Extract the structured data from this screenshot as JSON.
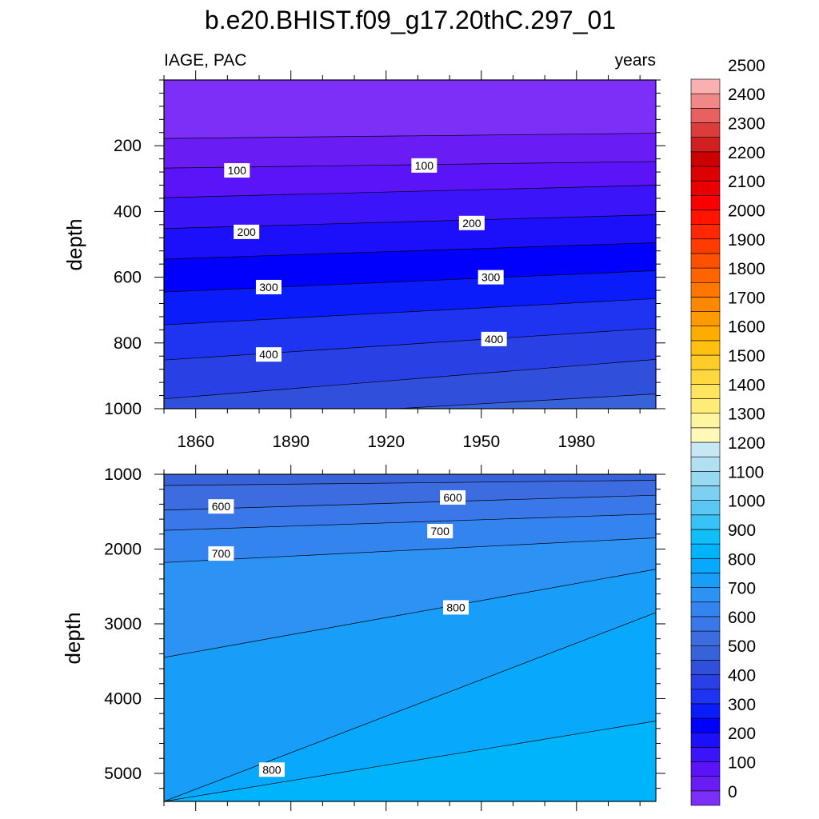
{
  "title": "b.e20.BHIST.f09_g17.20thC.297_01",
  "chart_data": [
    {
      "type": "heatmap",
      "panel": "upper",
      "left_string": "IAGE, PAC",
      "right_string": "years",
      "xlabel": "",
      "ylabel": "depth",
      "xlim": [
        1850,
        2005
      ],
      "ylim": [
        1000,
        0
      ],
      "x_ticks": [
        "1860",
        "1890",
        "1920",
        "1950",
        "1980"
      ],
      "x_tick_values": [
        1860,
        1890,
        1920,
        1950,
        1980
      ],
      "y_ticks": [
        "200",
        "400",
        "600",
        "800",
        "1000"
      ],
      "y_tick_values": [
        200,
        400,
        600,
        800,
        1000
      ],
      "contour_interval": 50,
      "contours": [
        {
          "level": 50,
          "depth_at_start": 178,
          "depth_at_end": 162
        },
        {
          "level": 100,
          "depth_at_start": 268,
          "depth_at_end": 248
        },
        {
          "level": 150,
          "depth_at_start": 358,
          "depth_at_end": 320
        },
        {
          "level": 200,
          "depth_at_start": 452,
          "depth_at_end": 410
        },
        {
          "level": 250,
          "depth_at_start": 545,
          "depth_at_end": 495
        },
        {
          "level": 300,
          "depth_at_start": 645,
          "depth_at_end": 580
        },
        {
          "level": 350,
          "depth_at_start": 745,
          "depth_at_end": 665
        },
        {
          "level": 400,
          "depth_at_start": 852,
          "depth_at_end": 755
        },
        {
          "level": 450,
          "depth_at_start": 970,
          "depth_at_end": 850
        },
        {
          "level": 500,
          "depth_at_start": 1040,
          "depth_at_end": 955
        }
      ],
      "contour_labels": [
        {
          "text": "100",
          "x": 1873,
          "depth": 275
        },
        {
          "text": "100",
          "x": 1932,
          "depth": 260
        },
        {
          "text": "200",
          "x": 1876,
          "depth": 462
        },
        {
          "text": "200",
          "x": 1947,
          "depth": 435
        },
        {
          "text": "300",
          "x": 1883,
          "depth": 630
        },
        {
          "text": "300",
          "x": 1953,
          "depth": 600
        },
        {
          "text": "400",
          "x": 1883,
          "depth": 835
        },
        {
          "text": "400",
          "x": 1954,
          "depth": 788
        }
      ]
    },
    {
      "type": "heatmap",
      "panel": "lower",
      "xlabel": "",
      "ylabel": "depth",
      "xlim": [
        1850,
        2005
      ],
      "ylim": [
        5375,
        1000
      ],
      "x_tick_values": [
        1860,
        1890,
        1920,
        1950,
        1980
      ],
      "y_ticks": [
        "1000",
        "2000",
        "3000",
        "4000",
        "5000"
      ],
      "y_tick_values": [
        1000,
        2000,
        3000,
        4000,
        5000
      ],
      "contour_interval": 50,
      "contours": [
        {
          "level": 550,
          "depth_at_start": 1150,
          "depth_at_end": 1080
        },
        {
          "level": 600,
          "depth_at_start": 1480,
          "depth_at_end": 1280
        },
        {
          "level": 650,
          "depth_at_start": 1750,
          "depth_at_end": 1530
        },
        {
          "level": 700,
          "depth_at_start": 2180,
          "depth_at_end": 1850
        },
        {
          "level": 750,
          "depth_at_start": 3450,
          "depth_at_end": 2270
        },
        {
          "level": 800,
          "depth_at_start": 5375,
          "depth_at_end": 2850
        },
        {
          "level": 850,
          "depth_at_start": 5375,
          "depth_at_end": 4300
        }
      ],
      "contour_labels": [
        {
          "text": "600",
          "x": 1868,
          "depth": 1430
        },
        {
          "text": "600",
          "x": 1941,
          "depth": 1310
        },
        {
          "text": "700",
          "x": 1868,
          "depth": 2060
        },
        {
          "text": "700",
          "x": 1937,
          "depth": 1760
        },
        {
          "text": "800",
          "x": 1942,
          "depth": 2780
        },
        {
          "text": "800",
          "x": 1884,
          "depth": 4950
        }
      ]
    }
  ],
  "colorbar": {
    "labels": [
      "0",
      "100",
      "200",
      "300",
      "400",
      "500",
      "600",
      "700",
      "800",
      "900",
      "1000",
      "1100",
      "1200",
      "1300",
      "1400",
      "1500",
      "1600",
      "1700",
      "1800",
      "1900",
      "2000",
      "2100",
      "2200",
      "2300",
      "2400",
      "2500"
    ],
    "boxes_bottom_to_top": [
      "#7b2ff7",
      "#6a1cf4",
      "#5a14f7",
      "#3c14fa",
      "#1c10fb",
      "#0000fc",
      "#0a1cfa",
      "#1e34f0",
      "#2840e4",
      "#3050dc",
      "#3862d8",
      "#3c6ce0",
      "#3a78ea",
      "#3484f0",
      "#2c92f4",
      "#189ef8",
      "#08a8fc",
      "#00b4fc",
      "#10bef8",
      "#38c2f6",
      "#5ac8f2",
      "#7cd0f2",
      "#98d8f0",
      "#b0e0f2",
      "#c6e8f4",
      "#fff8b8",
      "#fff4a0",
      "#ffec78",
      "#ffe460",
      "#ffd840",
      "#ffcc28",
      "#ffc010",
      "#ffac00",
      "#ff9a00",
      "#ff8800",
      "#ff7600",
      "#ff6400",
      "#ff5000",
      "#ff3c00",
      "#ff2800",
      "#ff1400",
      "#fa0000",
      "#ea0000",
      "#dc0000",
      "#cc0000",
      "#d02020",
      "#dc3c3c",
      "#e86060",
      "#f08888",
      "#f8b0b0"
    ]
  }
}
